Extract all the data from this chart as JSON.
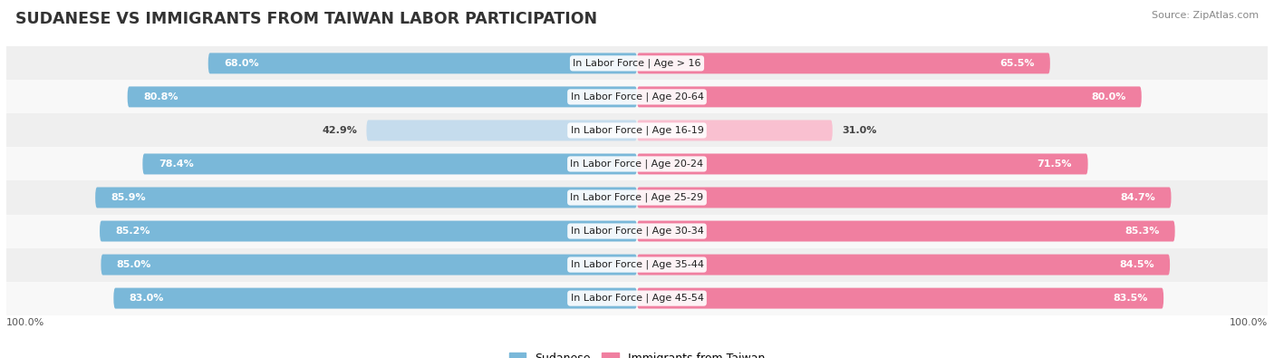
{
  "title": "SUDANESE VS IMMIGRANTS FROM TAIWAN LABOR PARTICIPATION",
  "source": "Source: ZipAtlas.com",
  "categories": [
    "In Labor Force | Age > 16",
    "In Labor Force | Age 20-64",
    "In Labor Force | Age 16-19",
    "In Labor Force | Age 20-24",
    "In Labor Force | Age 25-29",
    "In Labor Force | Age 30-34",
    "In Labor Force | Age 35-44",
    "In Labor Force | Age 45-54"
  ],
  "sudanese": [
    68.0,
    80.8,
    42.9,
    78.4,
    85.9,
    85.2,
    85.0,
    83.0
  ],
  "taiwan": [
    65.5,
    80.0,
    31.0,
    71.5,
    84.7,
    85.3,
    84.5,
    83.5
  ],
  "sudanese_color": "#7ab8d9",
  "taiwan_color": "#f07fa0",
  "sudanese_light_color": "#c5dced",
  "taiwan_light_color": "#f9c0d0",
  "row_bg_even": "#efefef",
  "row_bg_odd": "#f8f8f8",
  "legend_sudanese": "Sudanese",
  "legend_taiwan": "Immigrants from Taiwan",
  "bar_height": 0.62,
  "max_value": 100.0,
  "title_fontsize": 12.5,
  "source_fontsize": 8,
  "category_fontsize": 8.0,
  "value_fontsize": 8.0
}
